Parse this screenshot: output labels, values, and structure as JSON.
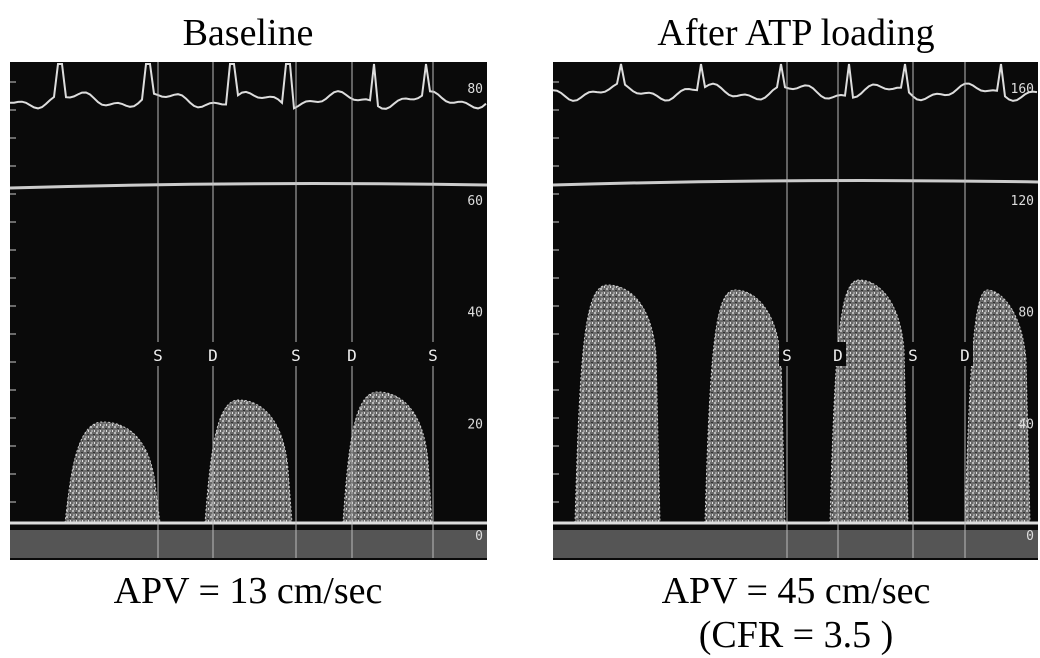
{
  "panels": [
    {
      "title": "Baseline",
      "scale_labels": [
        "80",
        "60",
        "40",
        "20",
        "0"
      ],
      "markers": [
        "S",
        "D",
        "S",
        "D",
        "S"
      ],
      "caption": [
        "APV = 13 cm/sec"
      ]
    },
    {
      "title": "After ATP loading",
      "scale_labels": [
        "160",
        "120",
        "80",
        "40",
        "0"
      ],
      "markers": [
        "S",
        "D",
        "S",
        "D"
      ],
      "caption": [
        "APV = 45 cm/sec",
        "(CFR = 3.5 )"
      ]
    }
  ]
}
